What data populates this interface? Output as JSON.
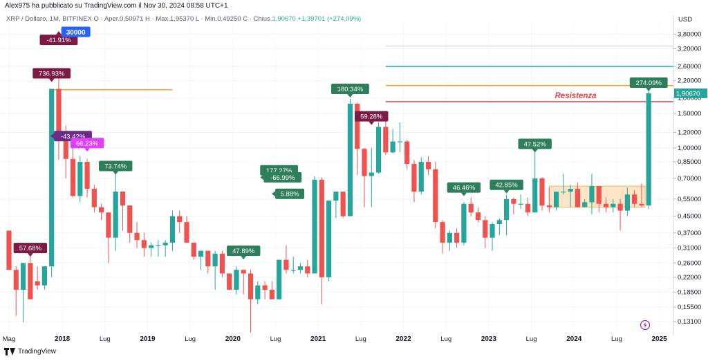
{
  "header": {
    "published_text": "Alex975 ha pubblicato su TradingView.com il Nov 30, 2024 08:58 UTC+1",
    "symbol": "XRP / Dollaro, 1M, BITFINEX",
    "open": "O · Aper.0,50971",
    "high": "H · Max.1,95370",
    "low": "L · Min.0,49250",
    "close_label": "C · Chius.",
    "close_value": "1,90670 +1,39701 (+274,09%)"
  },
  "footer": {
    "brand": "TradingView"
  },
  "currency": "USD",
  "colors": {
    "up": "#26a69a",
    "down": "#ef5350",
    "orange": "#f0a336",
    "red": "#e0424a",
    "teal": "#29b3bd",
    "gray": "#c8cad0",
    "box": "#fbe5c6"
  },
  "chart_data": {
    "type": "candlestick",
    "title": "XRP / Dollaro, 1M, BITFINEX",
    "ylabel": "USD",
    "yscale": "log",
    "ylim": [
      0.115,
      4.3
    ],
    "y_ticks": [
      "3,80000",
      "3,20000",
      "2,60000",
      "2,20000",
      "1,80000",
      "1,50000",
      "1,20000",
      "1,00000",
      "0,85000",
      "0,70000",
      "0,55000",
      "0,45000",
      "0,37000",
      "0,31000",
      "0,26000",
      "0,22000",
      "0,18500",
      "0,15500",
      "0,13100"
    ],
    "y_tick_values": [
      3.8,
      3.2,
      2.6,
      2.2,
      1.8,
      1.5,
      1.2,
      1.0,
      0.85,
      0.7,
      0.55,
      0.45,
      0.37,
      0.31,
      0.26,
      0.22,
      0.185,
      0.155,
      0.131
    ],
    "x_ticks": [
      "Mag",
      "2018",
      "Lug",
      "2019",
      "Lug",
      "2020",
      "Lug",
      "2021",
      "Lug",
      "2022",
      "Lug",
      "2023",
      "Lug",
      "2024",
      "Lug",
      "2025"
    ],
    "x_tick_index": [
      0,
      7.5,
      13.5,
      19.5,
      25.5,
      31.5,
      37.5,
      43.5,
      49.5,
      55.5,
      61.5,
      67.5,
      73.5,
      79.5,
      85.5,
      91.5
    ],
    "last_price": "1,90670",
    "candles": [
      [
        0.38,
        0.38,
        0.24,
        0.24
      ],
      [
        0.24,
        0.25,
        0.14,
        0.19
      ],
      [
        0.19,
        0.26,
        0.13,
        0.26
      ],
      [
        0.26,
        0.3,
        0.17,
        0.17
      ],
      [
        0.21,
        0.25,
        0.19,
        0.2
      ],
      [
        0.2,
        0.25,
        0.19,
        0.25
      ],
      [
        0.25,
        2.0,
        0.22,
        2.0
      ],
      [
        2.0,
        2.4,
        0.87,
        1.17
      ],
      [
        1.17,
        1.3,
        0.7,
        0.88
      ],
      [
        0.88,
        1.05,
        0.56,
        0.57
      ],
      [
        0.57,
        0.91,
        0.53,
        0.85
      ],
      [
        0.85,
        0.88,
        0.56,
        0.62
      ],
      [
        0.62,
        0.65,
        0.47,
        0.5
      ],
      [
        0.5,
        0.52,
        0.43,
        0.47
      ],
      [
        0.47,
        0.47,
        0.26,
        0.35
      ],
      [
        0.35,
        0.77,
        0.3,
        0.6
      ],
      [
        0.6,
        0.6,
        0.38,
        0.51
      ],
      [
        0.51,
        0.51,
        0.33,
        0.37
      ],
      [
        0.37,
        0.42,
        0.31,
        0.34
      ],
      [
        0.34,
        0.37,
        0.28,
        0.31
      ],
      [
        0.31,
        0.33,
        0.28,
        0.32
      ],
      [
        0.32,
        0.34,
        0.28,
        0.32
      ],
      [
        0.32,
        0.34,
        0.28,
        0.33
      ],
      [
        0.33,
        0.48,
        0.3,
        0.45
      ],
      [
        0.45,
        0.48,
        0.37,
        0.42
      ],
      [
        0.42,
        0.45,
        0.33,
        0.33
      ],
      [
        0.33,
        0.33,
        0.27,
        0.28
      ],
      [
        0.28,
        0.3,
        0.24,
        0.3
      ],
      [
        0.3,
        0.3,
        0.23,
        0.25
      ],
      [
        0.25,
        0.3,
        0.19,
        0.29
      ],
      [
        0.29,
        0.3,
        0.22,
        0.23
      ],
      [
        0.23,
        0.23,
        0.19,
        0.19
      ],
      [
        0.19,
        0.25,
        0.18,
        0.24
      ],
      [
        0.24,
        0.24,
        0.18,
        0.23
      ],
      [
        0.23,
        0.24,
        0.115,
        0.17
      ],
      [
        0.17,
        0.21,
        0.16,
        0.2
      ],
      [
        0.2,
        0.21,
        0.17,
        0.19
      ],
      [
        0.19,
        0.21,
        0.17,
        0.17
      ],
      [
        0.17,
        0.27,
        0.17,
        0.27
      ],
      [
        0.27,
        0.32,
        0.23,
        0.24
      ],
      [
        0.24,
        0.28,
        0.23,
        0.24
      ],
      [
        0.24,
        0.26,
        0.23,
        0.25
      ],
      [
        0.25,
        0.27,
        0.22,
        0.23
      ],
      [
        0.23,
        0.72,
        0.23,
        0.69
      ],
      [
        0.69,
        0.71,
        0.16,
        0.22
      ],
      [
        0.22,
        0.54,
        0.21,
        0.54
      ],
      [
        0.54,
        0.6,
        0.44,
        0.6
      ],
      [
        0.6,
        0.6,
        0.44,
        0.45
      ],
      [
        0.45,
        1.78,
        0.45,
        1.68
      ],
      [
        1.68,
        1.7,
        0.73,
        0.99
      ],
      [
        0.99,
        1.0,
        0.5,
        0.72
      ],
      [
        0.72,
        1.0,
        0.5,
        0.75
      ],
      [
        0.75,
        1.35,
        0.74,
        1.28
      ],
      [
        1.28,
        1.38,
        0.92,
        0.95
      ],
      [
        0.95,
        1.25,
        0.94,
        1.08
      ],
      [
        1.08,
        1.35,
        0.95,
        1.08
      ],
      [
        1.08,
        1.1,
        0.78,
        0.83
      ],
      [
        0.83,
        0.87,
        0.53,
        0.6
      ],
      [
        0.6,
        0.9,
        0.58,
        0.85
      ],
      [
        0.85,
        0.91,
        0.73,
        0.78
      ],
      [
        0.78,
        0.85,
        0.39,
        0.42
      ],
      [
        0.42,
        0.43,
        0.29,
        0.33
      ],
      [
        0.33,
        0.38,
        0.3,
        0.37
      ],
      [
        0.37,
        0.39,
        0.31,
        0.33
      ],
      [
        0.33,
        0.53,
        0.32,
        0.52
      ],
      [
        0.52,
        0.56,
        0.45,
        0.47
      ],
      [
        0.47,
        0.5,
        0.42,
        0.43
      ],
      [
        0.43,
        0.45,
        0.31,
        0.35
      ],
      [
        0.35,
        0.42,
        0.3,
        0.41
      ],
      [
        0.41,
        0.44,
        0.36,
        0.43
      ],
      [
        0.43,
        0.58,
        0.36,
        0.55
      ],
      [
        0.55,
        0.56,
        0.46,
        0.52
      ],
      [
        0.52,
        0.58,
        0.49,
        0.52
      ],
      [
        0.52,
        0.56,
        0.45,
        0.47
      ],
      [
        0.47,
        0.95,
        0.47,
        0.7
      ],
      [
        0.7,
        0.71,
        0.48,
        0.51
      ],
      [
        0.51,
        0.63,
        0.47,
        0.5
      ],
      [
        0.5,
        0.59,
        0.48,
        0.6
      ],
      [
        0.6,
        0.74,
        0.58,
        0.6
      ],
      [
        0.6,
        0.65,
        0.5,
        0.62
      ],
      [
        0.62,
        0.67,
        0.5,
        0.5
      ],
      [
        0.5,
        0.55,
        0.5,
        0.53
      ],
      [
        0.53,
        0.74,
        0.46,
        0.64
      ],
      [
        0.64,
        0.64,
        0.47,
        0.52
      ],
      [
        0.52,
        0.56,
        0.47,
        0.5
      ],
      [
        0.5,
        0.55,
        0.47,
        0.52
      ],
      [
        0.52,
        0.55,
        0.38,
        0.48
      ],
      [
        0.48,
        0.63,
        0.45,
        0.58
      ],
      [
        0.58,
        0.61,
        0.5,
        0.52
      ],
      [
        0.52,
        0.66,
        0.5,
        0.51
      ],
      [
        0.51,
        1.95,
        0.49,
        1.9
      ]
    ],
    "resistance_lines": [
      {
        "name": "orange-short",
        "price": 1.98,
        "style": "orange",
        "from": 6,
        "to": 23
      },
      {
        "name": "gray-top",
        "price": 3.3,
        "style": "gray",
        "from": 53,
        "to": "end"
      },
      {
        "name": "teal",
        "price": 2.6,
        "style": "teal",
        "from": 53,
        "to": "end"
      },
      {
        "name": "orange-long",
        "price": 2.08,
        "style": "orange",
        "from": 53,
        "to": "end"
      },
      {
        "name": "red-resistenza",
        "price": 1.72,
        "style": "red",
        "from": 53,
        "to": "end",
        "label": "Resistenza"
      }
    ],
    "range_box": {
      "from": 76,
      "to": 89.5,
      "low": 0.5,
      "high": 0.64
    },
    "labels": [
      {
        "text": "57.68%",
        "index": 3,
        "price": 0.31,
        "kind": "up",
        "color": "#7b1a44"
      },
      {
        "text": "736.93%",
        "index": 6,
        "price": 2.4,
        "kind": "up",
        "color": "#7b1a44"
      },
      {
        "text": "-41.91%",
        "index": 7,
        "price": 3.55,
        "kind": "down",
        "color": "#7b1a44"
      },
      {
        "text": "30000",
        "index": 9.4,
        "price": 3.9,
        "kind": "badge",
        "color": "#2962ff"
      },
      {
        "text": "-43.42%",
        "index": 9,
        "price": 1.15,
        "kind": "flat",
        "color": "#6a2a86"
      },
      {
        "text": "66.23%",
        "index": 11,
        "price": 1.06,
        "kind": "up",
        "color": "#e040fb"
      },
      {
        "text": "73.74%",
        "index": 15,
        "price": 0.81,
        "kind": "up",
        "color": "#2e7d5b"
      },
      {
        "text": "47.89%",
        "index": 33,
        "price": 0.3,
        "kind": "up",
        "color": "#2e7d5b"
      },
      {
        "text": "177.27%",
        "index": 38,
        "price": 0.77,
        "kind": "up",
        "color": "#2e7d5b"
      },
      {
        "text": "-66.99%",
        "index": 38.5,
        "price": 0.71,
        "kind": "flat",
        "color": "#2e7d5b"
      },
      {
        "text": "5.88%",
        "index": 39.5,
        "price": 0.585,
        "kind": "flat",
        "color": "#2e7d5b"
      },
      {
        "text": "180.34%",
        "index": 48,
        "price": 2.0,
        "kind": "up",
        "color": "#2e7d5b"
      },
      {
        "text": "59.28%",
        "index": 51,
        "price": 1.45,
        "kind": "up",
        "color": "#7b1a44"
      },
      {
        "text": "46.46%",
        "index": 64,
        "price": 0.63,
        "kind": "up",
        "color": "#2e7d5b"
      },
      {
        "text": "42.85%",
        "index": 70,
        "price": 0.65,
        "kind": "up",
        "color": "#2e7d5b"
      },
      {
        "text": "47.52%",
        "index": 74,
        "price": 1.05,
        "kind": "up",
        "color": "#2e7d5b"
      },
      {
        "text": "274.09%",
        "index": 90,
        "price": 2.15,
        "kind": "up",
        "color": "#2e7d5b"
      }
    ]
  }
}
